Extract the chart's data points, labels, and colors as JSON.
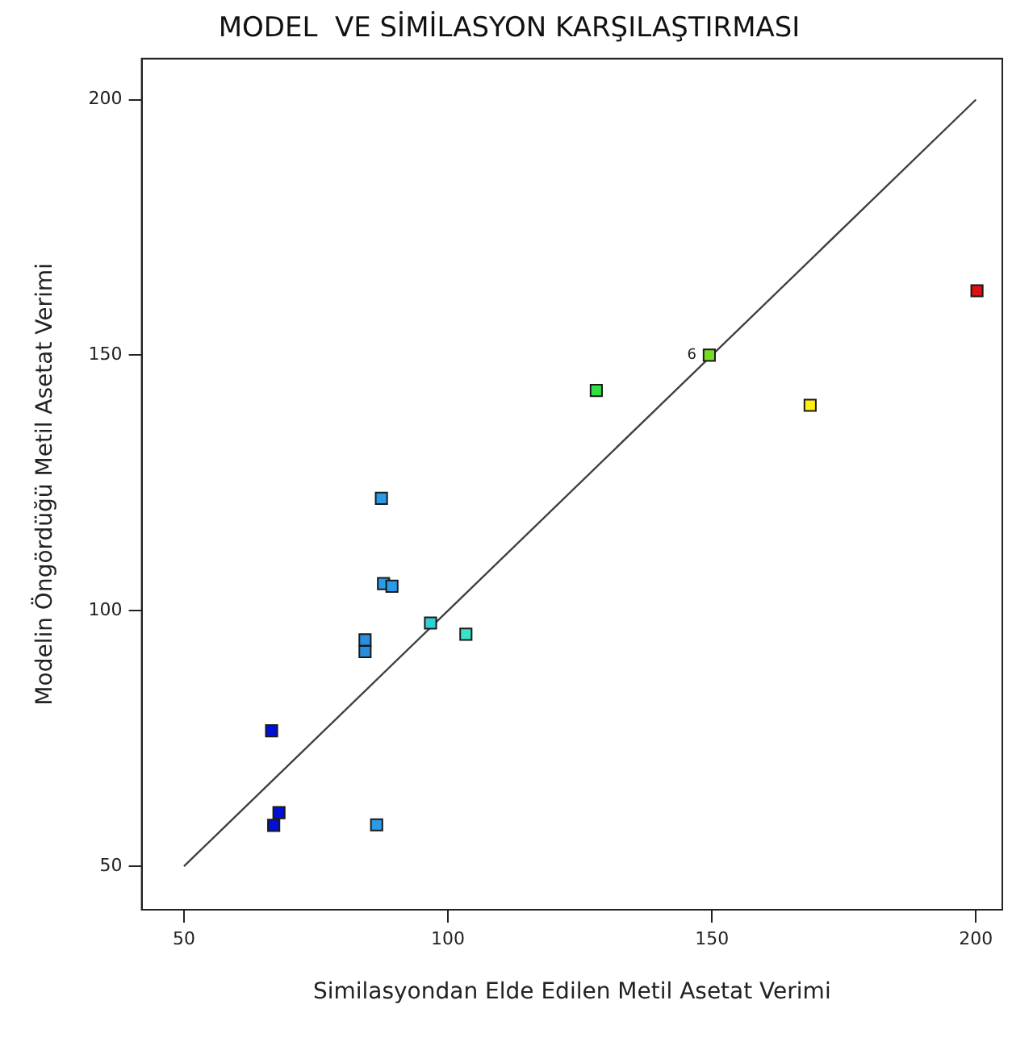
{
  "chart_data": {
    "type": "scatter",
    "title": "MODEL  VE SİMİLASYON KARŞILAŞTIRMASI",
    "xlabel": "Similasyondan Elde Edilen Metil Asetat Verimi",
    "ylabel": "Modelin Öngördüğü Metil Asetat Verimi",
    "xlim": [
      42,
      205
    ],
    "ylim": [
      41.5,
      208
    ],
    "xticks": [
      50,
      100,
      150,
      200
    ],
    "yticks": [
      50,
      100,
      150,
      200
    ],
    "grid": false,
    "legend": false,
    "marker": "square",
    "annotations": [
      {
        "text": "6",
        "x": 149.5,
        "y": 150
      }
    ],
    "series": [
      {
        "x": [
          87.4,
          87.8,
          89.4,
          96.7,
          103.4,
          84.3,
          84.3,
          66.6,
          68.0,
          67.0,
          86.5,
          200.2,
          149.5,
          128.1,
          168.6
        ],
        "values": [
          122.0,
          105.3,
          104.8,
          97.6,
          95.4,
          94.3,
          92.0,
          76.5,
          60.5,
          58.0,
          58.1,
          162.6,
          150.0,
          143.1,
          140.2
        ],
        "colors": [
          "#2a9be8",
          "#2a9be8",
          "#2a9be8",
          "#33cfd8",
          "#3ae0c8",
          "#2a8ee0",
          "#2a8ee0",
          "#0010d8",
          "#0010d8",
          "#0010d8",
          "#2a9be8",
          "#e01010",
          "#77dd22",
          "#33dd44",
          "#ffee11"
        ]
      },
      {
        "type": "line",
        "x": [
          50,
          200
        ],
        "values": [
          50,
          200
        ],
        "color": "#404040",
        "marker": "none",
        "line_style": "solid"
      }
    ]
  }
}
